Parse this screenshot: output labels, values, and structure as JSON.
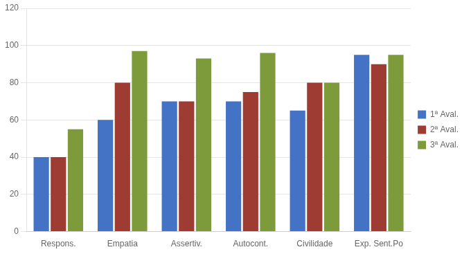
{
  "chart_data": {
    "type": "bar",
    "categories": [
      "Respons.",
      "Empatia",
      "Assertiv.",
      "Autocont.",
      "Civilidade",
      "Exp. Sent.Po"
    ],
    "series": [
      {
        "name": "1ª Aval.",
        "color": "#4472C4",
        "values": [
          40,
          60,
          70,
          70,
          65,
          95
        ]
      },
      {
        "name": "2ª Aval.",
        "color": "#9E3B32",
        "values": [
          40,
          80,
          70,
          75,
          80,
          90
        ]
      },
      {
        "name": "3ª Aval.",
        "color": "#7E9B3C",
        "values": [
          55,
          97,
          93,
          96,
          80,
          95
        ]
      }
    ],
    "ylim": [
      0,
      120
    ],
    "yticks": [
      0,
      20,
      40,
      60,
      80,
      100,
      120
    ],
    "grid": true,
    "legend": "right"
  }
}
